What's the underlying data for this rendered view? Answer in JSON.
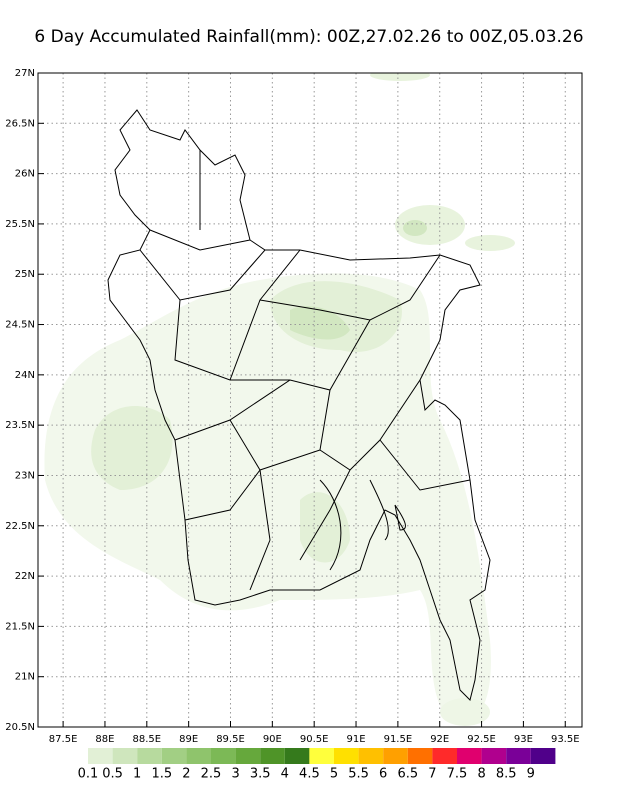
{
  "title": "6 Day Accumulated Rainfall(mm): 00Z,27.02.26 to 00Z,05.03.26",
  "map": {
    "xlim": [
      87.2,
      93.7
    ],
    "ylim": [
      20.5,
      27
    ],
    "grid": true,
    "xticks": [
      {
        "value": 87.5,
        "label": "87.5E"
      },
      {
        "value": 88,
        "label": "88E"
      },
      {
        "value": 88.5,
        "label": "88.5E"
      },
      {
        "value": 89,
        "label": "89E"
      },
      {
        "value": 89.5,
        "label": "89.5E"
      },
      {
        "value": 90,
        "label": "90E"
      },
      {
        "value": 90.5,
        "label": "90.5E"
      },
      {
        "value": 91,
        "label": "91E"
      },
      {
        "value": 91.5,
        "label": "91.5E"
      },
      {
        "value": 92,
        "label": "92E"
      },
      {
        "value": 92.5,
        "label": "92.5E"
      },
      {
        "value": 93,
        "label": "93E"
      },
      {
        "value": 93.5,
        "label": "93.5E"
      }
    ],
    "yticks": [
      {
        "value": 20.5,
        "label": "20.5N"
      },
      {
        "value": 21,
        "label": "21N"
      },
      {
        "value": 21.5,
        "label": "21.5N"
      },
      {
        "value": 22,
        "label": "22N"
      },
      {
        "value": 22.5,
        "label": "22.5N"
      },
      {
        "value": 23,
        "label": "23N"
      },
      {
        "value": 23.5,
        "label": "23.5N"
      },
      {
        "value": 24,
        "label": "24N"
      },
      {
        "value": 24.5,
        "label": "24.5N"
      },
      {
        "value": 25,
        "label": "25N"
      },
      {
        "value": 25.5,
        "label": "25.5N"
      },
      {
        "value": 26,
        "label": "26N"
      },
      {
        "value": 26.5,
        "label": "26.5N"
      },
      {
        "value": 27,
        "label": "27N"
      }
    ]
  },
  "colorbar": {
    "levels": [
      0.1,
      0.5,
      1,
      1.5,
      2,
      2.5,
      3,
      3.5,
      4,
      4.5,
      5,
      5.5,
      6,
      6.5,
      7,
      7.5,
      8,
      8.5,
      9
    ],
    "colors": [
      "#f1f8ea",
      "#e2f0d6",
      "#cfe6bd",
      "#b7da9e",
      "#a2cf84",
      "#8fc46c",
      "#7cb956",
      "#66a83c",
      "#4f9428",
      "#357a1c",
      "#ffff3c",
      "#ffe000",
      "#ffc000",
      "#ffa000",
      "#ff7000",
      "#ff2a2a",
      "#e0006e",
      "#b0008e",
      "#7a0098",
      "#50008a"
    ]
  }
}
